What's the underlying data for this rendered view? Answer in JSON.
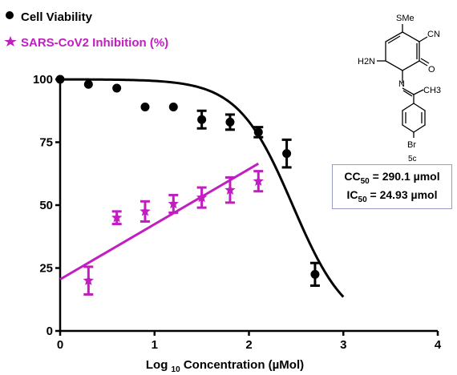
{
  "chart_data": {
    "type": "scatter",
    "xlabel": "Log 10 Concentration (µMol)",
    "ylabel": "",
    "xlim": [
      0,
      4
    ],
    "ylim": [
      0,
      100
    ],
    "x_ticks": [
      0,
      1,
      2,
      3,
      4
    ],
    "y_ticks": [
      0,
      25,
      50,
      75,
      100
    ],
    "legend_position": "top-left",
    "series": [
      {
        "name": "Cell Viability",
        "color": "#000000",
        "marker": "circle",
        "points": [
          {
            "x": 0,
            "y": 100,
            "err": 0
          },
          {
            "x": 0.3,
            "y": 98,
            "err": 0
          },
          {
            "x": 0.6,
            "y": 96.5,
            "err": 0
          },
          {
            "x": 0.9,
            "y": 89,
            "err": 0
          },
          {
            "x": 1.2,
            "y": 89,
            "err": 0
          },
          {
            "x": 1.5,
            "y": 84,
            "err": 3.5
          },
          {
            "x": 1.8,
            "y": 83,
            "err": 3
          },
          {
            "x": 2.1,
            "y": 79,
            "err": 2
          },
          {
            "x": 2.4,
            "y": 70.5,
            "err": 5.5
          },
          {
            "x": 2.7,
            "y": 22.5,
            "err": 4.5
          }
        ],
        "fit": {
          "kind": "dose-response",
          "top": 100,
          "bottom": 0,
          "log_cc50": 2.4626,
          "hill": 1.5,
          "x_range": [
            0,
            3
          ]
        }
      },
      {
        "name": "SARS-CoV2 Inhibition (%)",
        "color": "#c01ec0",
        "marker": "star",
        "points": [
          {
            "x": 0.3,
            "y": 20,
            "err": 5.5
          },
          {
            "x": 0.6,
            "y": 45,
            "err": 2.5
          },
          {
            "x": 0.9,
            "y": 47.5,
            "err": 4
          },
          {
            "x": 1.2,
            "y": 50.5,
            "err": 3.5
          },
          {
            "x": 1.5,
            "y": 53,
            "err": 4
          },
          {
            "x": 1.8,
            "y": 56,
            "err": 5
          },
          {
            "x": 2.1,
            "y": 59.5,
            "err": 4
          }
        ],
        "fit": {
          "kind": "linear",
          "x_range": [
            0,
            2.1
          ],
          "y_start": 20.5,
          "y_end": 66.5
        }
      }
    ],
    "annotations": {
      "cc50_prefix": "CC",
      "cc50_sub": "50",
      "cc50_value": " = 290.1 µmol",
      "ic50_prefix": "IC",
      "ic50_sub": "50",
      "ic50_value": " = 24.93 µmol"
    },
    "structure": {
      "compound_label": "5c",
      "labels": {
        "sme": "SMe",
        "cn": "CN",
        "h2n": "H2N",
        "n": "N",
        "o": "O",
        "ch3": "CH3",
        "br": "Br"
      }
    }
  }
}
